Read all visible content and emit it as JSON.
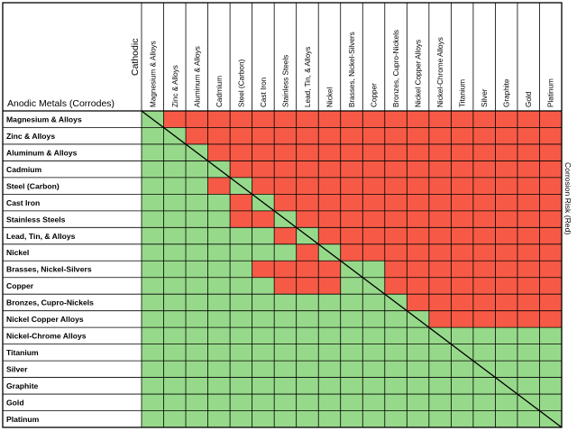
{
  "chart_data": {
    "type": "heatmap",
    "row_header": "Anodic Metals (Corrodes)",
    "col_header": "Cathodic",
    "legend_label": "Corrosion Risk (Red)",
    "colors": {
      "risk": "#f65a46",
      "safe": "#97d98a",
      "grid": "#000000"
    },
    "rows": [
      "Magnesium & Alloys",
      "Zinc & Alloys",
      "Aluminum & Alloys",
      "Cadmium",
      "Steel (Carbon)",
      "Cast Iron",
      "Stainless Steels",
      "Lead, Tin, & Alloys",
      "Nickel",
      "Brasses, Nickel-Silvers",
      "Copper",
      "Bronzes, Cupro-Nickels",
      "Nickel Copper Alloys",
      "Nickel-Chrome Alloys",
      "Titanium",
      "Silver",
      "Graphite",
      "Gold",
      "Platinum"
    ],
    "columns": [
      "Magnesium & Alloys",
      "Zinc & Alloys",
      "Aluminum & Alloys",
      "Cadmium",
      "Steel (Carbon)",
      "Cast Iron",
      "Stainless Steels",
      "Lead, Tin, & Alloys",
      "Nickel",
      "Brasses, Nickel-Silvers",
      "Copper",
      "Bronzes, Cupro-Nickels",
      "Nickel Copper Alloys",
      "Nickel-Chrome Alloys",
      "Titanium",
      "Silver",
      "Graphite",
      "Gold",
      "Platinum"
    ],
    "risk_matrix": [
      [
        0,
        1,
        1,
        1,
        1,
        1,
        1,
        1,
        1,
        1,
        1,
        1,
        1,
        1,
        1,
        1,
        1,
        1,
        1
      ],
      [
        0,
        0,
        1,
        1,
        1,
        1,
        1,
        1,
        1,
        1,
        1,
        1,
        1,
        1,
        1,
        1,
        1,
        1,
        1
      ],
      [
        0,
        0,
        0,
        1,
        1,
        1,
        1,
        1,
        1,
        1,
        1,
        1,
        1,
        1,
        1,
        1,
        1,
        1,
        1
      ],
      [
        0,
        0,
        0,
        0,
        1,
        1,
        1,
        1,
        1,
        1,
        1,
        1,
        1,
        1,
        1,
        1,
        1,
        1,
        1
      ],
      [
        0,
        0,
        0,
        1,
        0,
        1,
        1,
        1,
        1,
        1,
        1,
        1,
        1,
        1,
        1,
        1,
        1,
        1,
        1
      ],
      [
        0,
        0,
        0,
        0,
        1,
        0,
        1,
        1,
        1,
        1,
        1,
        1,
        1,
        1,
        1,
        1,
        1,
        1,
        1
      ],
      [
        0,
        0,
        0,
        0,
        1,
        1,
        0,
        1,
        1,
        1,
        1,
        1,
        1,
        1,
        1,
        1,
        1,
        1,
        1
      ],
      [
        0,
        0,
        0,
        0,
        0,
        0,
        1,
        0,
        1,
        1,
        1,
        1,
        1,
        1,
        1,
        1,
        1,
        1,
        1
      ],
      [
        0,
        0,
        0,
        0,
        0,
        0,
        0,
        1,
        0,
        1,
        1,
        1,
        1,
        1,
        1,
        1,
        1,
        1,
        1
      ],
      [
        0,
        0,
        0,
        0,
        0,
        1,
        1,
        1,
        1,
        0,
        0,
        1,
        1,
        1,
        1,
        1,
        1,
        1,
        1
      ],
      [
        0,
        0,
        0,
        0,
        0,
        0,
        1,
        1,
        1,
        0,
        0,
        1,
        1,
        1,
        1,
        1,
        1,
        1,
        1
      ],
      [
        0,
        0,
        0,
        0,
        0,
        0,
        0,
        0,
        0,
        0,
        0,
        0,
        1,
        1,
        1,
        1,
        1,
        1,
        1
      ],
      [
        0,
        0,
        0,
        0,
        0,
        0,
        0,
        0,
        0,
        0,
        0,
        0,
        0,
        1,
        1,
        1,
        1,
        1,
        1
      ],
      [
        0,
        0,
        0,
        0,
        0,
        0,
        0,
        0,
        0,
        0,
        0,
        0,
        0,
        0,
        0,
        0,
        0,
        0,
        0
      ],
      [
        0,
        0,
        0,
        0,
        0,
        0,
        0,
        0,
        0,
        0,
        0,
        0,
        0,
        0,
        0,
        0,
        0,
        0,
        0
      ],
      [
        0,
        0,
        0,
        0,
        0,
        0,
        0,
        0,
        0,
        0,
        0,
        0,
        0,
        0,
        0,
        0,
        0,
        0,
        0
      ],
      [
        0,
        0,
        0,
        0,
        0,
        0,
        0,
        0,
        0,
        0,
        0,
        0,
        0,
        0,
        0,
        0,
        0,
        0,
        0
      ],
      [
        0,
        0,
        0,
        0,
        0,
        0,
        0,
        0,
        0,
        0,
        0,
        0,
        0,
        0,
        0,
        0,
        0,
        0,
        0
      ],
      [
        0,
        0,
        0,
        0,
        0,
        0,
        0,
        0,
        0,
        0,
        0,
        0,
        0,
        0,
        0,
        0,
        0,
        0,
        0
      ]
    ]
  }
}
